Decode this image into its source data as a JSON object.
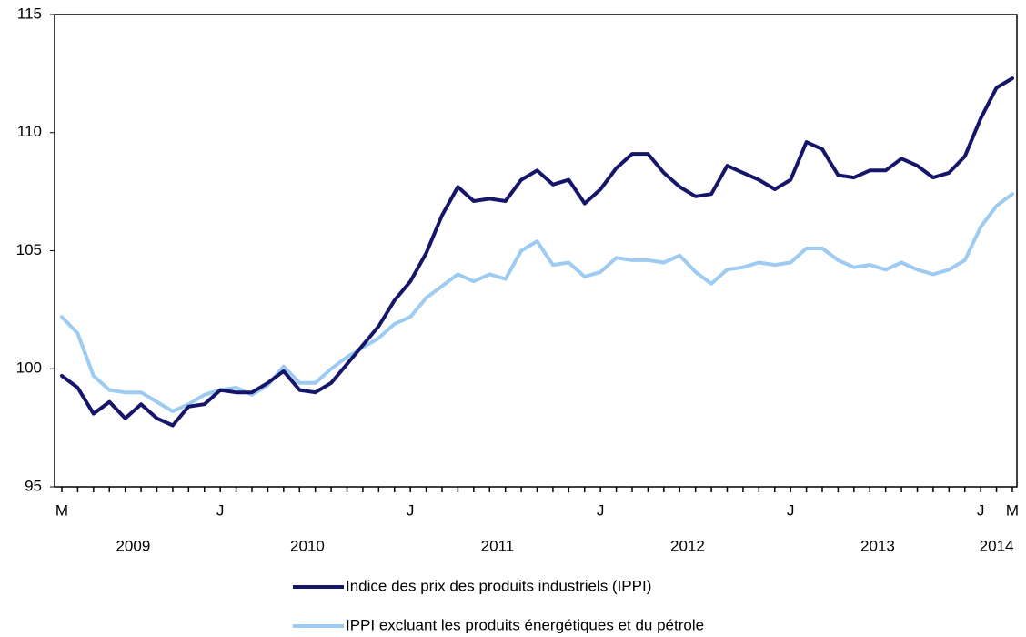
{
  "chart_data": {
    "type": "line",
    "categories": [
      "M",
      null,
      null,
      null,
      null,
      null,
      null,
      null,
      null,
      null,
      "J",
      null,
      null,
      null,
      null,
      null,
      null,
      null,
      null,
      null,
      null,
      null,
      "J",
      null,
      null,
      null,
      null,
      null,
      null,
      null,
      null,
      null,
      null,
      null,
      "J",
      null,
      null,
      null,
      null,
      null,
      null,
      null,
      null,
      null,
      null,
      null,
      "J",
      null,
      null,
      null,
      null,
      null,
      null,
      null,
      null,
      null,
      null,
      null,
      "J",
      null,
      "M"
    ],
    "year_labels": [
      "2009",
      "2010",
      "2011",
      "2012",
      "2013",
      "2014"
    ],
    "series": [
      {
        "name": "Indice des prix des produits industriels (IPPI)",
        "color": "#15166a",
        "values": [
          99.7,
          99.2,
          98.1,
          98.6,
          97.9,
          98.5,
          97.9,
          97.6,
          98.4,
          98.5,
          99.1,
          99.0,
          99.0,
          99.4,
          99.9,
          99.1,
          99.0,
          99.4,
          100.2,
          101.0,
          101.8,
          102.9,
          103.7,
          104.9,
          106.5,
          107.7,
          107.1,
          107.2,
          107.1,
          108.0,
          108.4,
          107.8,
          108.0,
          107.0,
          107.6,
          108.5,
          109.1,
          109.1,
          108.3,
          107.7,
          107.3,
          107.4,
          108.6,
          108.3,
          108.0,
          107.6,
          108.0,
          109.6,
          109.3,
          108.2,
          108.1,
          108.4,
          108.4,
          108.9,
          108.6,
          108.1,
          108.3,
          109.0,
          110.6,
          111.9,
          112.3
        ]
      },
      {
        "name": "IPPI excluant les produits énergétiques et du pétrole",
        "color": "#9dcbf1",
        "values": [
          102.2,
          101.5,
          99.7,
          99.1,
          99.0,
          99.0,
          98.6,
          98.2,
          98.5,
          98.9,
          99.1,
          99.2,
          98.9,
          99.3,
          100.1,
          99.4,
          99.4,
          100.0,
          100.5,
          100.9,
          101.3,
          101.9,
          102.2,
          103.0,
          103.5,
          104.0,
          103.7,
          104.0,
          103.8,
          105.0,
          105.4,
          104.4,
          104.5,
          103.9,
          104.1,
          104.7,
          104.6,
          104.6,
          104.5,
          104.8,
          104.1,
          103.6,
          104.2,
          104.3,
          104.5,
          104.4,
          104.5,
          105.1,
          105.1,
          104.6,
          104.3,
          104.4,
          104.2,
          104.5,
          104.2,
          104.0,
          104.2,
          104.6,
          106.0,
          106.9,
          107.4
        ]
      }
    ],
    "ylim": [
      95,
      115
    ],
    "yticks": [
      95,
      100,
      105,
      110,
      115
    ]
  }
}
